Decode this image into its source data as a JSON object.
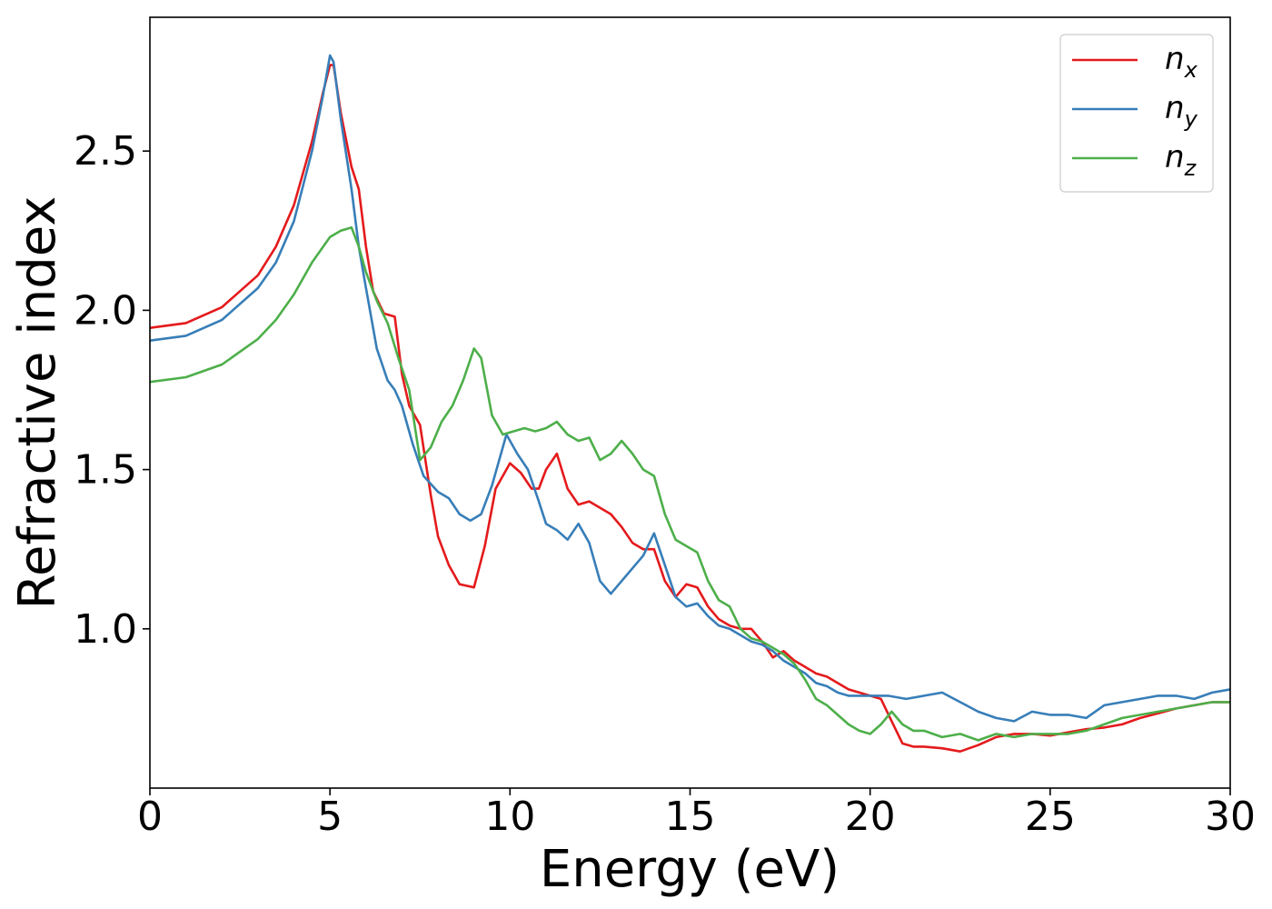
{
  "chart_data": {
    "type": "line",
    "title": "",
    "xlabel": "Energy (eV)",
    "ylabel": "Refractive index",
    "xlim": [
      0,
      30
    ],
    "ylim": [
      0.5,
      2.92
    ],
    "xticks": [
      0,
      5,
      10,
      15,
      20,
      25,
      30
    ],
    "yticks": [
      1.0,
      1.5,
      2.0,
      2.5
    ],
    "xtick_labels": [
      "0",
      "5",
      "10",
      "15",
      "20",
      "25",
      "30"
    ],
    "ytick_labels": [
      "1.0",
      "1.5",
      "2.0",
      "2.5"
    ],
    "grid": false,
    "legend_position": "top-right",
    "series": [
      {
        "label_main": "n",
        "label_sub": "x",
        "color": "#e41a1c",
        "x": [
          0,
          1,
          2,
          3,
          3.5,
          4,
          4.5,
          4.8,
          5.0,
          5.1,
          5.3,
          5.6,
          5.8,
          6.0,
          6.2,
          6.5,
          6.8,
          7.0,
          7.2,
          7.5,
          7.8,
          8.0,
          8.3,
          8.6,
          9.0,
          9.3,
          9.6,
          10.0,
          10.3,
          10.6,
          10.8,
          11.0,
          11.3,
          11.6,
          11.9,
          12.2,
          12.5,
          12.8,
          13.1,
          13.4,
          13.7,
          14.0,
          14.3,
          14.6,
          14.9,
          15.2,
          15.5,
          15.8,
          16.1,
          16.4,
          16.7,
          17.0,
          17.3,
          17.6,
          17.9,
          18.2,
          18.5,
          18.8,
          19.1,
          19.4,
          19.7,
          20.0,
          20.3,
          20.6,
          20.9,
          21.2,
          21.5,
          22.0,
          22.5,
          23.0,
          23.5,
          24.0,
          24.5,
          25.0,
          25.5,
          26.0,
          26.5,
          27.0,
          27.5,
          28.0,
          28.5,
          29.0,
          29.5,
          30.0
        ],
        "y": [
          1.945,
          1.96,
          2.01,
          2.11,
          2.2,
          2.33,
          2.53,
          2.68,
          2.77,
          2.77,
          2.62,
          2.45,
          2.38,
          2.2,
          2.06,
          1.99,
          1.98,
          1.8,
          1.7,
          1.64,
          1.42,
          1.29,
          1.2,
          1.14,
          1.13,
          1.26,
          1.44,
          1.52,
          1.49,
          1.44,
          1.44,
          1.5,
          1.55,
          1.44,
          1.39,
          1.4,
          1.38,
          1.36,
          1.32,
          1.27,
          1.25,
          1.25,
          1.15,
          1.1,
          1.14,
          1.13,
          1.07,
          1.03,
          1.01,
          1.0,
          1.0,
          0.96,
          0.91,
          0.93,
          0.9,
          0.88,
          0.86,
          0.85,
          0.83,
          0.81,
          0.8,
          0.79,
          0.78,
          0.71,
          0.64,
          0.63,
          0.63,
          0.625,
          0.615,
          0.635,
          0.66,
          0.67,
          0.67,
          0.665,
          0.675,
          0.685,
          0.69,
          0.7,
          0.72,
          0.735,
          0.75,
          0.76,
          0.77,
          0.77
        ]
      },
      {
        "label_main": "n",
        "label_sub": "y",
        "color": "#377eb8",
        "x": [
          0,
          1,
          2,
          3,
          3.5,
          4,
          4.5,
          4.8,
          5.0,
          5.1,
          5.3,
          5.6,
          5.8,
          6.0,
          6.3,
          6.6,
          6.8,
          7.0,
          7.3,
          7.6,
          8.0,
          8.3,
          8.6,
          8.9,
          9.2,
          9.5,
          9.9,
          10.2,
          10.5,
          10.8,
          11.0,
          11.3,
          11.6,
          11.9,
          12.2,
          12.5,
          12.8,
          13.1,
          13.4,
          13.7,
          14.0,
          14.3,
          14.6,
          14.9,
          15.2,
          15.5,
          15.8,
          16.1,
          16.4,
          16.7,
          17.0,
          17.3,
          17.6,
          17.9,
          18.2,
          18.5,
          18.8,
          19.1,
          19.4,
          19.7,
          20.0,
          20.5,
          21.0,
          21.5,
          22.0,
          22.5,
          23.0,
          23.5,
          24.0,
          24.5,
          25.0,
          25.5,
          26.0,
          26.5,
          27.0,
          27.5,
          28.0,
          28.5,
          29.0,
          29.5,
          30.0
        ],
        "y": [
          1.905,
          1.92,
          1.97,
          2.07,
          2.15,
          2.28,
          2.5,
          2.67,
          2.8,
          2.78,
          2.6,
          2.38,
          2.2,
          2.07,
          1.88,
          1.78,
          1.75,
          1.7,
          1.58,
          1.48,
          1.43,
          1.41,
          1.36,
          1.34,
          1.36,
          1.45,
          1.61,
          1.55,
          1.5,
          1.4,
          1.33,
          1.31,
          1.28,
          1.33,
          1.27,
          1.15,
          1.11,
          1.15,
          1.19,
          1.23,
          1.3,
          1.2,
          1.1,
          1.07,
          1.08,
          1.04,
          1.01,
          1.0,
          0.98,
          0.96,
          0.95,
          0.93,
          0.9,
          0.88,
          0.86,
          0.83,
          0.82,
          0.8,
          0.79,
          0.79,
          0.79,
          0.79,
          0.78,
          0.79,
          0.8,
          0.77,
          0.74,
          0.72,
          0.71,
          0.74,
          0.73,
          0.73,
          0.72,
          0.76,
          0.77,
          0.78,
          0.79,
          0.79,
          0.78,
          0.8,
          0.81
        ]
      },
      {
        "label_main": "n",
        "label_sub": "z",
        "color": "#4daf4a",
        "x": [
          0,
          1,
          2,
          3,
          3.5,
          4,
          4.5,
          5.0,
          5.3,
          5.6,
          5.8,
          6.0,
          6.3,
          6.6,
          6.9,
          7.2,
          7.5,
          7.8,
          8.1,
          8.4,
          8.7,
          9.0,
          9.2,
          9.5,
          9.8,
          10.1,
          10.4,
          10.7,
          11.0,
          11.3,
          11.6,
          11.9,
          12.2,
          12.5,
          12.8,
          13.1,
          13.4,
          13.7,
          14.0,
          14.3,
          14.6,
          14.9,
          15.2,
          15.5,
          15.8,
          16.1,
          16.4,
          16.7,
          17.0,
          17.3,
          17.6,
          17.9,
          18.2,
          18.5,
          18.8,
          19.1,
          19.4,
          19.7,
          20.0,
          20.3,
          20.6,
          20.9,
          21.2,
          21.5,
          22.0,
          22.5,
          23.0,
          23.5,
          24.0,
          24.5,
          25.0,
          25.5,
          26.0,
          26.5,
          27.0,
          27.5,
          28.0,
          28.5,
          29.0,
          29.5,
          30.0
        ],
        "y": [
          1.775,
          1.79,
          1.83,
          1.91,
          1.97,
          2.05,
          2.15,
          2.23,
          2.25,
          2.26,
          2.2,
          2.12,
          2.03,
          1.96,
          1.85,
          1.75,
          1.53,
          1.57,
          1.65,
          1.7,
          1.78,
          1.88,
          1.85,
          1.67,
          1.61,
          1.62,
          1.63,
          1.62,
          1.63,
          1.65,
          1.61,
          1.59,
          1.6,
          1.53,
          1.55,
          1.59,
          1.55,
          1.5,
          1.48,
          1.36,
          1.28,
          1.26,
          1.24,
          1.15,
          1.09,
          1.07,
          1.0,
          0.97,
          0.96,
          0.94,
          0.92,
          0.89,
          0.84,
          0.78,
          0.76,
          0.73,
          0.7,
          0.68,
          0.67,
          0.7,
          0.74,
          0.7,
          0.68,
          0.68,
          0.66,
          0.67,
          0.65,
          0.67,
          0.66,
          0.67,
          0.67,
          0.67,
          0.68,
          0.7,
          0.72,
          0.73,
          0.74,
          0.75,
          0.76,
          0.77,
          0.77
        ]
      }
    ]
  }
}
